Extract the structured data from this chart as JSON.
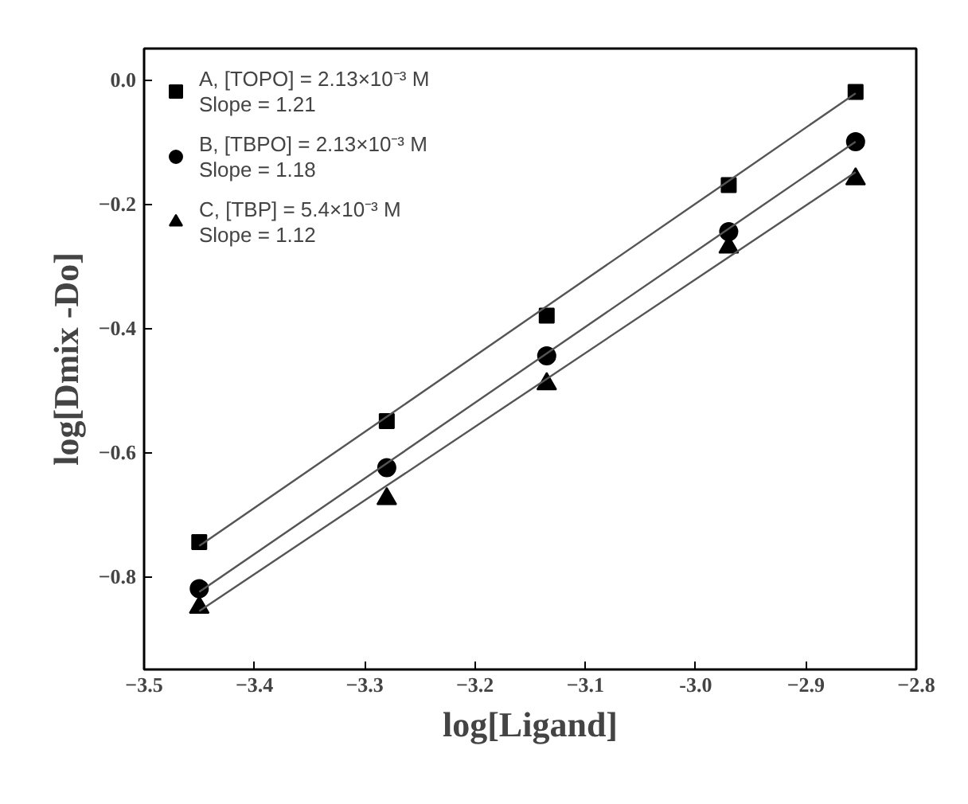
{
  "chart_data": {
    "type": "scatter",
    "xlabel": "log[Ligand]",
    "ylabel": "log[Dmix -Do]",
    "xlim": [
      -3.5,
      -2.8
    ],
    "ylim": [
      -0.95,
      0.05
    ],
    "xticks": [
      -3.5,
      -3.4,
      -3.3,
      -3.2,
      -3.1,
      {
        "value": -3.0,
        "label": "-3.0"
      },
      -2.9,
      -2.8
    ],
    "yticks": [
      {
        "value": 0.0,
        "label": "0.0"
      },
      -0.2,
      -0.4,
      -0.6,
      -0.8
    ],
    "x": [
      -3.45,
      -3.28,
      -3.135,
      -2.97,
      -2.855
    ],
    "grid": false,
    "legend": "top left",
    "series": [
      {
        "name": "A, [TOPO] = 2.13×10⁻³ M\nSlope = 1.21",
        "color": "#000000",
        "marker": "square",
        "values": [
          -0.745,
          -0.55,
          -0.38,
          -0.17,
          -0.02
        ]
      },
      {
        "name": "B, [TBPO] = 2.13×10⁻³ M\nSlope = 1.18",
        "color": "#000000",
        "marker": "circle",
        "values": [
          -0.82,
          -0.625,
          -0.445,
          -0.245,
          -0.1
        ]
      },
      {
        "name": "C, [TBP] = 5.4×10⁻³ M\nSlope = 1.12",
        "color": "#000000",
        "marker": "triangle",
        "values": [
          -0.85,
          -0.675,
          -0.49,
          -0.27,
          -0.16
        ]
      },
      {
        "type": "line",
        "color": "#555555",
        "line_style": "solid",
        "values": [
          -0.751,
          -0.543,
          -0.365,
          -0.163,
          -0.022
        ]
      },
      {
        "type": "line",
        "color": "#555555",
        "line_style": "solid",
        "values": [
          -0.825,
          -0.618,
          -0.441,
          -0.24,
          -0.1
        ]
      },
      {
        "type": "line",
        "color": "#555555",
        "line_style": "solid",
        "values": [
          -0.856,
          -0.654,
          -0.482,
          -0.286,
          -0.149
        ]
      }
    ]
  }
}
